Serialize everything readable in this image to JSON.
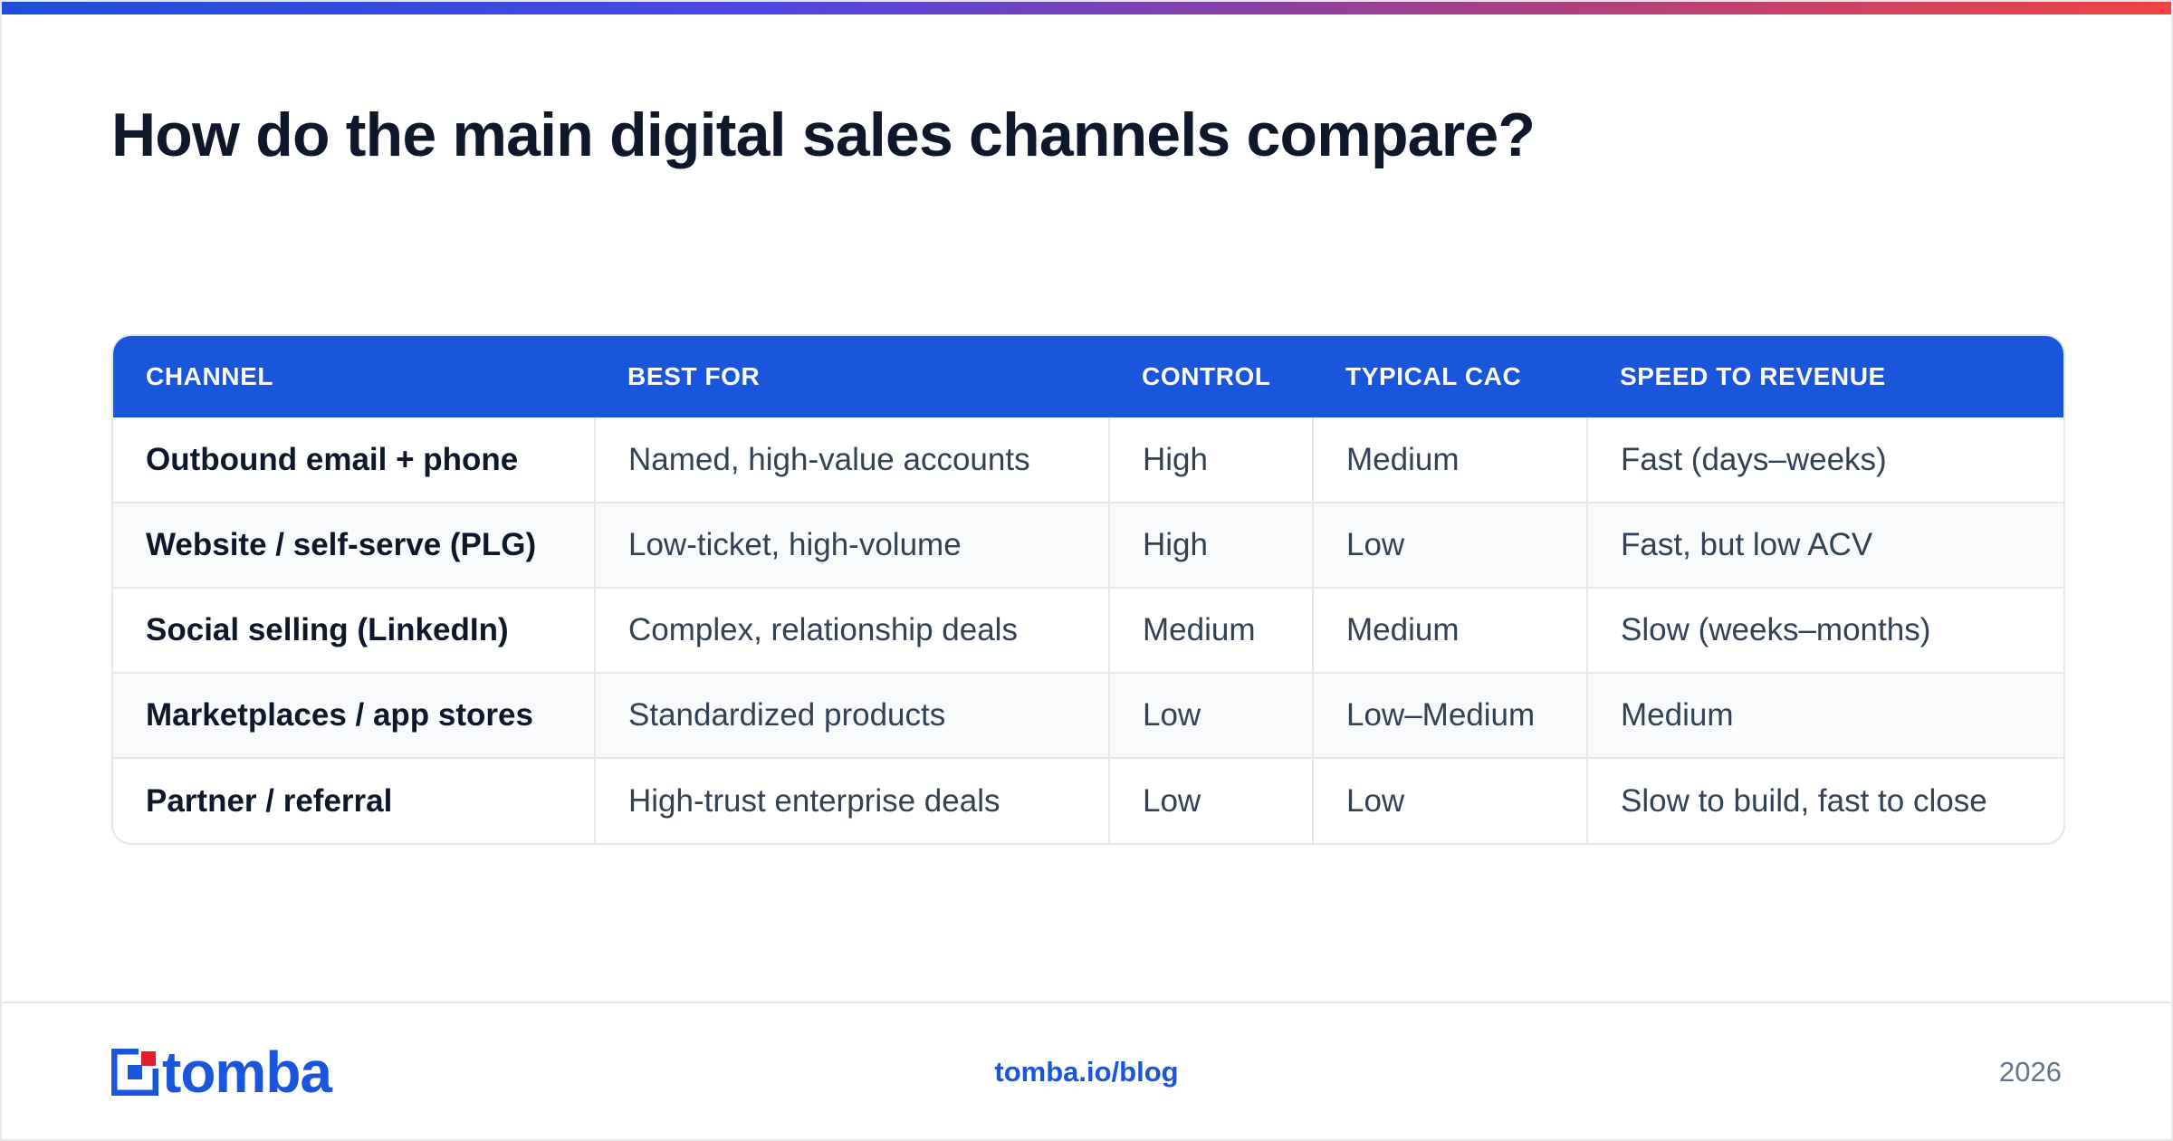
{
  "page": {
    "title": "How do the main digital sales channels compare?"
  },
  "colors": {
    "accent": "#1a56db",
    "logo_accent": "#e11d2e",
    "title": "#0f172a",
    "body_text": "#334155",
    "muted": "#64748b",
    "gradient": [
      "#1d4ed8",
      "#4f46e5",
      "#9d3f8f",
      "#ef4444"
    ]
  },
  "table": {
    "headers": [
      "CHANNEL",
      "BEST FOR",
      "CONTROL",
      "TYPICAL CAC",
      "SPEED TO REVENUE"
    ],
    "rows": [
      [
        "Outbound email + phone",
        "Named, high-value accounts",
        "High",
        "Medium",
        "Fast (days–weeks)"
      ],
      [
        "Website / self-serve (PLG)",
        "Low-ticket, high-volume",
        "High",
        "Low",
        "Fast, but low ACV"
      ],
      [
        "Social selling (LinkedIn)",
        "Complex, relationship deals",
        "Medium",
        "Medium",
        "Slow (weeks–months)"
      ],
      [
        "Marketplaces / app stores",
        "Standardized products",
        "Low",
        "Low–Medium",
        "Medium"
      ],
      [
        "Partner / referral",
        "High-trust enterprise deals",
        "Low",
        "Low",
        "Slow to build, fast to close"
      ]
    ]
  },
  "footer": {
    "logo_text": "tomba",
    "link": "tomba.io/blog",
    "year": "2026"
  },
  "icons": {
    "logo": "tomba-logo-icon"
  }
}
